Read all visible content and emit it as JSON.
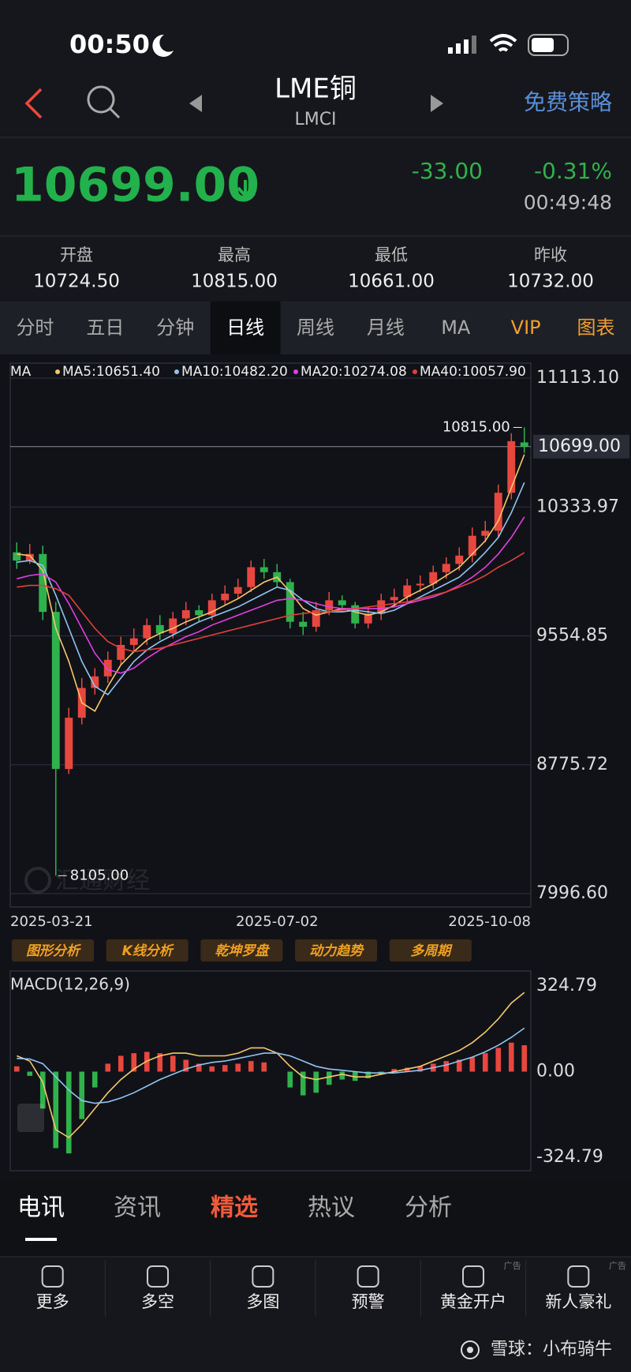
{
  "status": {
    "time": "00:50"
  },
  "header": {
    "title": "LME铜",
    "subtitle": "LMCI",
    "action": "免费策略"
  },
  "quote": {
    "price": "10699.00",
    "change": "-33.00",
    "change_pct": "-0.31%",
    "time": "00:49:48"
  },
  "stats": [
    {
      "label": "开盘",
      "value": "10724.50"
    },
    {
      "label": "最高",
      "value": "10815.00"
    },
    {
      "label": "最低",
      "value": "10661.00"
    },
    {
      "label": "昨收",
      "value": "10732.00"
    }
  ],
  "tabs": [
    {
      "label": "分时"
    },
    {
      "label": "五日"
    },
    {
      "label": "分钟"
    },
    {
      "label": "日线",
      "active": true
    },
    {
      "label": "周线"
    },
    {
      "label": "月线"
    },
    {
      "label": "MA"
    },
    {
      "label": "VIP",
      "accent": true
    },
    {
      "label": "图表",
      "accent": true
    }
  ],
  "tools": [
    "图形分析",
    "K线分析",
    "乾坤罗盘",
    "动力趋势",
    "多周期"
  ],
  "news_tabs": [
    {
      "label": "电讯",
      "active": true
    },
    {
      "label": "资讯"
    },
    {
      "label": "精选",
      "highlight": true
    },
    {
      "label": "热议"
    },
    {
      "label": "分析"
    }
  ],
  "nav": [
    {
      "label": "更多"
    },
    {
      "label": "多空"
    },
    {
      "label": "多图"
    },
    {
      "label": "预警"
    },
    {
      "label": "黄金开户",
      "ad": "广告"
    },
    {
      "label": "新人豪礼",
      "ad": "广告"
    }
  ],
  "footer": "雪球：小布骑牛",
  "chart_data": [
    {
      "type": "candlestick",
      "legend_title": "MA",
      "watermark": "汇通财经",
      "categories": [
        "2025-03-21",
        null,
        null,
        null,
        null,
        null,
        null,
        null,
        null,
        null,
        null,
        null,
        null,
        null,
        null,
        null,
        null,
        null,
        null,
        null,
        "2025-07-02",
        null,
        null,
        null,
        null,
        null,
        null,
        null,
        null,
        null,
        null,
        null,
        null,
        null,
        null,
        null,
        null,
        "2025-10-08",
        null,
        null
      ],
      "open": [
        10060,
        10010,
        10050,
        9700,
        8750,
        9060,
        9240,
        9310,
        9410,
        9500,
        9540,
        9620,
        9570,
        9660,
        9710,
        9680,
        9770,
        9810,
        9850,
        9970,
        9940,
        9880,
        9640,
        9610,
        9710,
        9770,
        9740,
        9630,
        9690,
        9770,
        9790,
        9860,
        9870,
        9940,
        9990,
        10040,
        10160,
        10190,
        10420,
        10724.5
      ],
      "high": [
        10120,
        10110,
        10100,
        9760,
        9120,
        9300,
        9360,
        9460,
        9550,
        9600,
        9660,
        9680,
        9700,
        9760,
        9740,
        9810,
        9860,
        9900,
        10010,
        10020,
        9990,
        9900,
        9700,
        9760,
        9820,
        9800,
        9760,
        9730,
        9810,
        9840,
        9900,
        9920,
        9980,
        10030,
        10090,
        10210,
        10250,
        10470,
        10780,
        10815
      ],
      "low": [
        9960,
        9990,
        9650,
        8105,
        8720,
        9020,
        9200,
        9270,
        9380,
        9460,
        9500,
        9530,
        9540,
        9620,
        9640,
        9650,
        9740,
        9780,
        9820,
        9900,
        9850,
        9600,
        9560,
        9580,
        9680,
        9700,
        9600,
        9600,
        9650,
        9730,
        9750,
        9820,
        9840,
        9900,
        9950,
        10000,
        10120,
        10150,
        10380,
        10661
      ],
      "close": [
        10010,
        10050,
        9700,
        8750,
        9060,
        9240,
        9310,
        9410,
        9500,
        9540,
        9620,
        9570,
        9660,
        9710,
        9680,
        9770,
        9810,
        9850,
        9970,
        9940,
        9880,
        9640,
        9610,
        9710,
        9770,
        9740,
        9630,
        9690,
        9770,
        9790,
        9860,
        9870,
        9940,
        9990,
        10040,
        10160,
        10190,
        10420,
        10732,
        10699
      ],
      "up_color": "#e8473f",
      "down_color": "#2fb24c",
      "ma": [
        {
          "name": "MA5:10651.40",
          "color": "#f5c76b",
          "values": [
            10050,
            10040,
            9950,
            9600,
            9400,
            9150,
            9100,
            9250,
            9380,
            9460,
            9530,
            9570,
            9600,
            9640,
            9670,
            9700,
            9740,
            9780,
            9830,
            9880,
            9910,
            9820,
            9720,
            9680,
            9700,
            9720,
            9700,
            9680,
            9700,
            9740,
            9790,
            9830,
            9870,
            9920,
            9970,
            10050,
            10130,
            10250,
            10450,
            10651.4
          ]
        },
        {
          "name": "MA10:10482.20",
          "color": "#8ec5f0",
          "values": [
            10000,
            10010,
            9980,
            9800,
            9600,
            9400,
            9250,
            9200,
            9300,
            9400,
            9470,
            9520,
            9560,
            9600,
            9640,
            9670,
            9700,
            9730,
            9770,
            9810,
            9850,
            9830,
            9770,
            9720,
            9700,
            9700,
            9710,
            9700,
            9690,
            9710,
            9750,
            9790,
            9830,
            9870,
            9910,
            9980,
            10060,
            10150,
            10300,
            10482.2
          ]
        },
        {
          "name": "MA20:10274.08",
          "color": "#e040e0",
          "values": [
            9900,
            9920,
            9930,
            9880,
            9750,
            9600,
            9450,
            9350,
            9330,
            9360,
            9420,
            9470,
            9510,
            9550,
            9580,
            9620,
            9650,
            9680,
            9710,
            9740,
            9770,
            9780,
            9770,
            9750,
            9730,
            9720,
            9720,
            9720,
            9720,
            9730,
            9750,
            9770,
            9790,
            9820,
            9860,
            9910,
            9970,
            10050,
            10150,
            10274.08
          ]
        },
        {
          "name": "MA40:10057.90",
          "color": "#e0403a",
          "values": [
            9850,
            9860,
            9860,
            9840,
            9800,
            9700,
            9600,
            9520,
            9480,
            9460,
            9470,
            9480,
            9500,
            9520,
            9540,
            9560,
            9580,
            9600,
            9620,
            9640,
            9660,
            9680,
            9690,
            9700,
            9700,
            9710,
            9720,
            9730,
            9740,
            9750,
            9760,
            9780,
            9800,
            9820,
            9850,
            9880,
            9920,
            9970,
            10010,
            10057.9
          ]
        }
      ],
      "ylim": [
        7996.6,
        11113.1
      ],
      "yticks": [
        {
          "value": 7996.6,
          "label": "7996.60"
        },
        {
          "value": 8775.72,
          "label": "8775.72"
        },
        {
          "value": 9554.85,
          "label": "9554.85"
        },
        {
          "value": 10333.97,
          "label": "10333.97"
        },
        {
          "value": 11113.1,
          "label": "11113.10"
        }
      ],
      "grid": true,
      "last": {
        "value": 10699,
        "label": "10699.00"
      },
      "annotations": [
        {
          "value": 10815,
          "label": "10815.00"
        },
        {
          "value": 8105,
          "label": "8105.00"
        }
      ]
    },
    {
      "type": "macd",
      "title": "MACD(12,26,9)",
      "ylim": [
        -324.79,
        324.79
      ],
      "yticks": [
        {
          "value": 324.79,
          "label": "324.79"
        },
        {
          "value": 0,
          "label": "0.00"
        },
        {
          "value": -324.79,
          "label": "-324.79"
        }
      ],
      "grid": false,
      "up_color": "#e8473f",
      "down_color": "#2fb24c",
      "histogram": [
        20,
        -16,
        -140,
        -290,
        -310,
        -180,
        -60,
        30,
        60,
        70,
        75,
        70,
        60,
        45,
        30,
        20,
        25,
        30,
        40,
        35,
        0,
        -60,
        -90,
        -80,
        -50,
        -30,
        -35,
        -25,
        -10,
        10,
        15,
        20,
        30,
        40,
        45,
        55,
        70,
        90,
        110,
        100
      ],
      "lines": [
        {
          "color": "#f5c76b",
          "values": [
            60,
            40,
            -40,
            -220,
            -250,
            -200,
            -140,
            -80,
            -30,
            10,
            40,
            60,
            70,
            70,
            60,
            60,
            60,
            70,
            90,
            90,
            70,
            20,
            -20,
            -30,
            -20,
            -10,
            -20,
            -20,
            -10,
            0,
            10,
            20,
            40,
            60,
            80,
            110,
            150,
            200,
            260,
            300
          ]
        },
        {
          "color": "#8ec5f0",
          "values": [
            50,
            48,
            30,
            -20,
            -70,
            -110,
            -120,
            -115,
            -100,
            -80,
            -55,
            -30,
            -10,
            10,
            25,
            35,
            40,
            50,
            60,
            70,
            70,
            60,
            40,
            20,
            10,
            5,
            0,
            -5,
            -5,
            -5,
            0,
            5,
            15,
            25,
            40,
            55,
            75,
            100,
            130,
            165
          ]
        }
      ]
    }
  ]
}
